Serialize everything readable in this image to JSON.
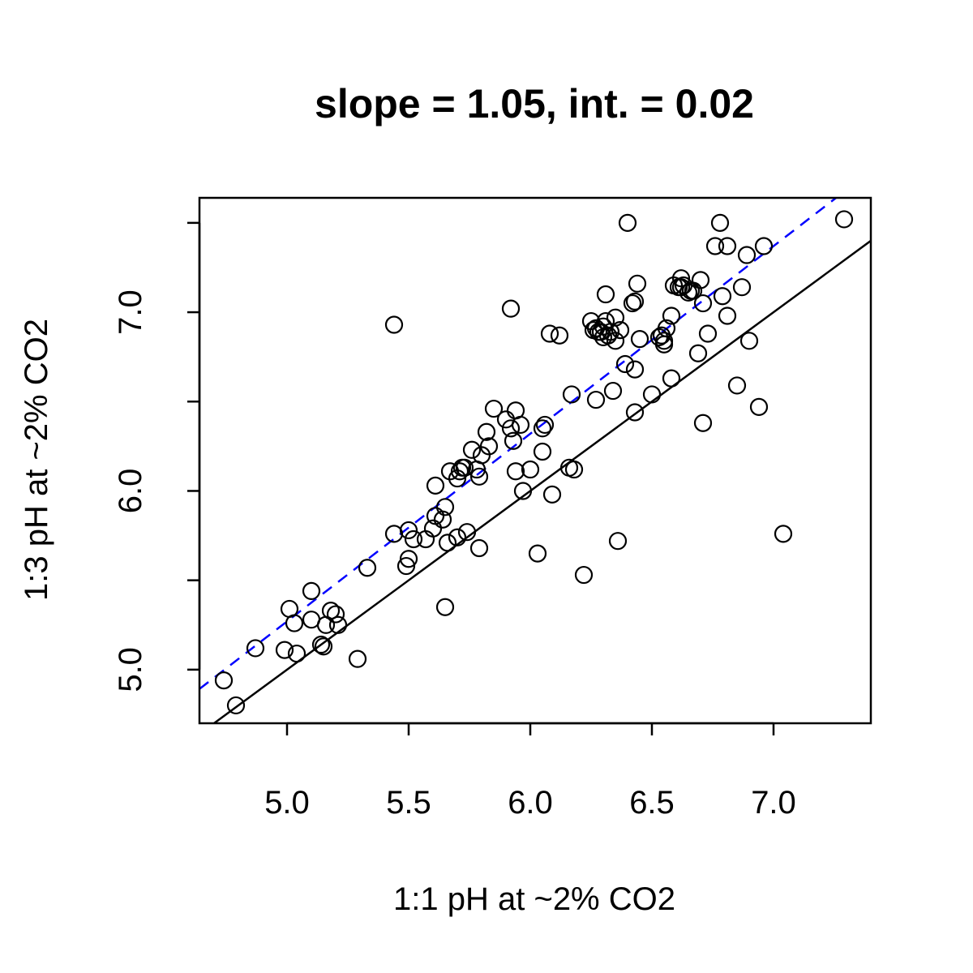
{
  "chart_data": {
    "type": "scatter",
    "title": "slope = 1.05, int. = 0.02",
    "xlabel": "1:1 pH at ~2% CO2",
    "ylabel": "1:3 pH at ~2% CO2",
    "xlim": [
      4.64,
      7.4
    ],
    "ylim": [
      4.7,
      7.64
    ],
    "x_ticks": [
      5.0,
      5.5,
      6.0,
      6.5,
      7.0
    ],
    "x_tick_labels": [
      "5.0",
      "5.5",
      "6.0",
      "6.5",
      "7.0"
    ],
    "y_ticks": [
      5.0,
      5.5,
      6.0,
      6.5,
      7.0,
      7.5
    ],
    "y_tick_labels": [
      "5.0",
      "",
      "6.0",
      "",
      "7.0",
      ""
    ],
    "grid": false,
    "lines": [
      {
        "kind": "identity",
        "slope": 1.0,
        "intercept": 0.0,
        "color": "#000000",
        "style": "solid"
      },
      {
        "kind": "fit",
        "slope": 1.05,
        "intercept": 0.02,
        "color": "#0000ff",
        "style": "dashed"
      }
    ],
    "points": [
      [
        4.74,
        4.94
      ],
      [
        4.79,
        4.8
      ],
      [
        4.87,
        5.12
      ],
      [
        4.99,
        5.11
      ],
      [
        5.01,
        5.34
      ],
      [
        5.03,
        5.26
      ],
      [
        5.04,
        5.09
      ],
      [
        5.1,
        5.44
      ],
      [
        5.1,
        5.28
      ],
      [
        5.14,
        5.14
      ],
      [
        5.15,
        5.13
      ],
      [
        5.16,
        5.25
      ],
      [
        5.18,
        5.33
      ],
      [
        5.2,
        5.31
      ],
      [
        5.21,
        5.25
      ],
      [
        5.29,
        5.06
      ],
      [
        5.33,
        5.57
      ],
      [
        5.44,
        6.93
      ],
      [
        5.44,
        5.76
      ],
      [
        5.49,
        5.58
      ],
      [
        5.5,
        5.62
      ],
      [
        5.5,
        5.78
      ],
      [
        5.52,
        5.73
      ],
      [
        5.57,
        5.73
      ],
      [
        5.6,
        5.79
      ],
      [
        5.61,
        5.86
      ],
      [
        5.61,
        6.03
      ],
      [
        5.64,
        5.84
      ],
      [
        5.65,
        5.35
      ],
      [
        5.65,
        5.91
      ],
      [
        5.66,
        5.71
      ],
      [
        5.67,
        6.11
      ],
      [
        5.7,
        5.74
      ],
      [
        5.7,
        6.07
      ],
      [
        5.71,
        6.11
      ],
      [
        5.72,
        6.13
      ],
      [
        5.73,
        6.13
      ],
      [
        5.74,
        5.77
      ],
      [
        5.76,
        6.23
      ],
      [
        5.78,
        6.12
      ],
      [
        5.79,
        5.68
      ],
      [
        5.79,
        6.08
      ],
      [
        5.8,
        6.2
      ],
      [
        5.82,
        6.33
      ],
      [
        5.83,
        6.25
      ],
      [
        5.85,
        6.46
      ],
      [
        5.9,
        6.4
      ],
      [
        5.92,
        7.02
      ],
      [
        5.92,
        6.35
      ],
      [
        5.93,
        6.28
      ],
      [
        5.94,
        6.45
      ],
      [
        5.94,
        6.11
      ],
      [
        5.96,
        6.37
      ],
      [
        5.97,
        6.0
      ],
      [
        6.0,
        6.12
      ],
      [
        6.03,
        5.65
      ],
      [
        6.05,
        6.22
      ],
      [
        6.05,
        6.35
      ],
      [
        6.06,
        6.37
      ],
      [
        6.08,
        6.88
      ],
      [
        6.09,
        5.98
      ],
      [
        6.12,
        6.87
      ],
      [
        6.16,
        6.13
      ],
      [
        6.17,
        6.54
      ],
      [
        6.18,
        6.12
      ],
      [
        6.22,
        5.53
      ],
      [
        6.25,
        6.95
      ],
      [
        6.26,
        6.9
      ],
      [
        6.27,
        6.91
      ],
      [
        6.27,
        6.51
      ],
      [
        6.28,
        6.89
      ],
      [
        6.29,
        6.89
      ],
      [
        6.3,
        6.92
      ],
      [
        6.3,
        6.86
      ],
      [
        6.31,
        7.1
      ],
      [
        6.31,
        6.95
      ],
      [
        6.32,
        6.87
      ],
      [
        6.33,
        6.89
      ],
      [
        6.34,
        6.56
      ],
      [
        6.35,
        6.84
      ],
      [
        6.35,
        6.97
      ],
      [
        6.36,
        5.72
      ],
      [
        6.37,
        6.9
      ],
      [
        6.39,
        6.71
      ],
      [
        6.4,
        7.5
      ],
      [
        6.42,
        7.05
      ],
      [
        6.43,
        6.68
      ],
      [
        6.43,
        6.44
      ],
      [
        6.43,
        7.06
      ],
      [
        6.44,
        7.16
      ],
      [
        6.45,
        6.85
      ],
      [
        6.5,
        6.54
      ],
      [
        6.53,
        6.86
      ],
      [
        6.54,
        6.87
      ],
      [
        6.55,
        6.84
      ],
      [
        6.55,
        6.82
      ],
      [
        6.56,
        6.91
      ],
      [
        6.58,
        6.63
      ],
      [
        6.58,
        6.98
      ],
      [
        6.59,
        7.15
      ],
      [
        6.61,
        7.14
      ],
      [
        6.62,
        7.14
      ],
      [
        6.62,
        7.19
      ],
      [
        6.63,
        7.15
      ],
      [
        6.65,
        7.11
      ],
      [
        6.66,
        7.12
      ],
      [
        6.67,
        7.12
      ],
      [
        6.69,
        6.77
      ],
      [
        6.7,
        7.18
      ],
      [
        6.71,
        7.05
      ],
      [
        6.71,
        6.38
      ],
      [
        6.73,
        6.88
      ],
      [
        6.76,
        7.37
      ],
      [
        6.78,
        7.5
      ],
      [
        6.79,
        7.09
      ],
      [
        6.81,
        7.37
      ],
      [
        6.81,
        6.98
      ],
      [
        6.85,
        6.59
      ],
      [
        6.87,
        7.14
      ],
      [
        6.89,
        7.32
      ],
      [
        6.9,
        6.84
      ],
      [
        6.94,
        6.47
      ],
      [
        6.96,
        7.37
      ],
      [
        7.04,
        5.76
      ],
      [
        7.29,
        7.52
      ]
    ]
  }
}
